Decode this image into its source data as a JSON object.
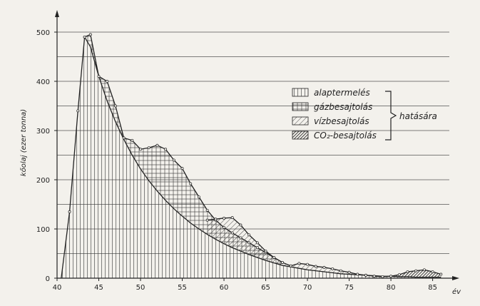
{
  "chart_data": {
    "type": "area",
    "ylabel": "kőolaj (ezer tonna)",
    "xlabel": "év",
    "xlim": [
      40,
      87
    ],
    "ylim": [
      0,
      500
    ],
    "x_ticks": [
      40,
      45,
      50,
      55,
      60,
      65,
      70,
      75,
      80,
      85
    ],
    "y_ticks": [
      0,
      100,
      200,
      300,
      400,
      500
    ],
    "x_tick_labels": [
      "40",
      "45",
      "50",
      "55",
      "60",
      "65",
      "70",
      "75",
      "80",
      "85"
    ],
    "y_tick_labels": [
      "0",
      "100",
      "200",
      "300",
      "400",
      "500"
    ],
    "grid": true,
    "legend_position": "top-right",
    "legend": {
      "items": [
        "alaptermelés",
        "gázbesajtolás",
        "vízbesajtolás",
        "CO₂-besajtolás"
      ],
      "brace_label": "hatására"
    },
    "series": [
      {
        "name": "alaptermelés",
        "x": [
          40.5,
          41.5,
          42.5,
          43.3,
          44,
          45,
          46,
          47,
          48,
          49,
          50,
          51,
          52,
          53,
          54,
          55,
          56,
          57,
          58,
          59,
          60,
          61,
          62,
          63,
          64,
          65,
          66,
          67,
          68,
          69,
          70,
          71,
          72,
          73,
          74,
          75,
          76,
          77,
          78,
          79,
          80,
          81,
          82,
          83,
          84,
          85,
          86
        ],
        "values": [
          0,
          135,
          340,
          490,
          470,
          410,
          360,
          318,
          282,
          250,
          222,
          198,
          177,
          158,
          141,
          126,
          112,
          100,
          89,
          79,
          70,
          62,
          55,
          48,
          42,
          36,
          31,
          26,
          23,
          20,
          17,
          15,
          13,
          11,
          9,
          8,
          7,
          6,
          5,
          4,
          4,
          3,
          3,
          2,
          2,
          2,
          2
        ]
      },
      {
        "name": "gázbesajtolás",
        "x": [
          43.3,
          44,
          45,
          46,
          47,
          48,
          49,
          50,
          51,
          52,
          53,
          54,
          55,
          56,
          57,
          58,
          59,
          60,
          61,
          62,
          63,
          64,
          65,
          66,
          67
        ],
        "values": [
          490,
          495,
          410,
          400,
          350,
          285,
          280,
          262,
          265,
          270,
          262,
          240,
          223,
          192,
          165,
          138,
          118,
          103,
          92,
          82,
          72,
          62,
          52,
          42,
          32
        ]
      },
      {
        "name": "vízbesajtolás",
        "x": [
          58,
          59,
          60,
          61,
          62,
          63,
          64,
          65,
          66,
          67,
          68,
          69,
          70,
          71,
          72,
          73,
          74,
          75,
          76,
          77
        ],
        "values": [
          118,
          120,
          122,
          123,
          108,
          88,
          72,
          55,
          42,
          32,
          25,
          30,
          28,
          24,
          22,
          19,
          15,
          12,
          8,
          6
        ]
      },
      {
        "name": "CO₂-besajtolás",
        "x": [
          77,
          78,
          79,
          80,
          81,
          82,
          83,
          84,
          85,
          86
        ],
        "values": [
          6,
          4,
          3,
          4,
          7,
          13,
          15,
          17,
          13,
          8
        ]
      }
    ]
  }
}
